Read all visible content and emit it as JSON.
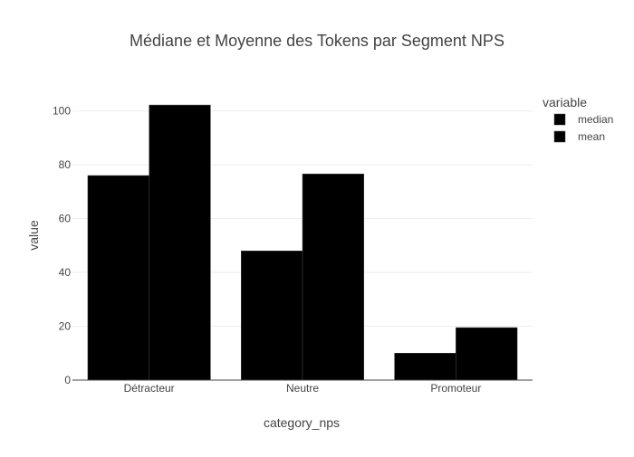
{
  "chart_data": {
    "type": "bar",
    "title": "Médiane et Moyenne des Tokens par Segment NPS",
    "xlabel": "category_nps",
    "ylabel": "value",
    "categories": [
      "Détracteur",
      "Neutre",
      "Promoteur"
    ],
    "series": [
      {
        "name": "median",
        "values": [
          76,
          48,
          10
        ],
        "color": "#000000"
      },
      {
        "name": "mean",
        "values": [
          102.2,
          76.6,
          19.5
        ],
        "color": "#000000"
      }
    ],
    "ylim": [
      0,
      107.6
    ],
    "yticks": [
      0,
      20,
      40,
      60,
      80,
      100
    ],
    "grid": true,
    "legend": {
      "title": "variable",
      "placement": "top-right"
    },
    "colors": {
      "text": "#444444",
      "title": "#444444",
      "grid": "#eeeeee",
      "axis_line": "#444444",
      "bar_stroke": "#444444"
    }
  }
}
